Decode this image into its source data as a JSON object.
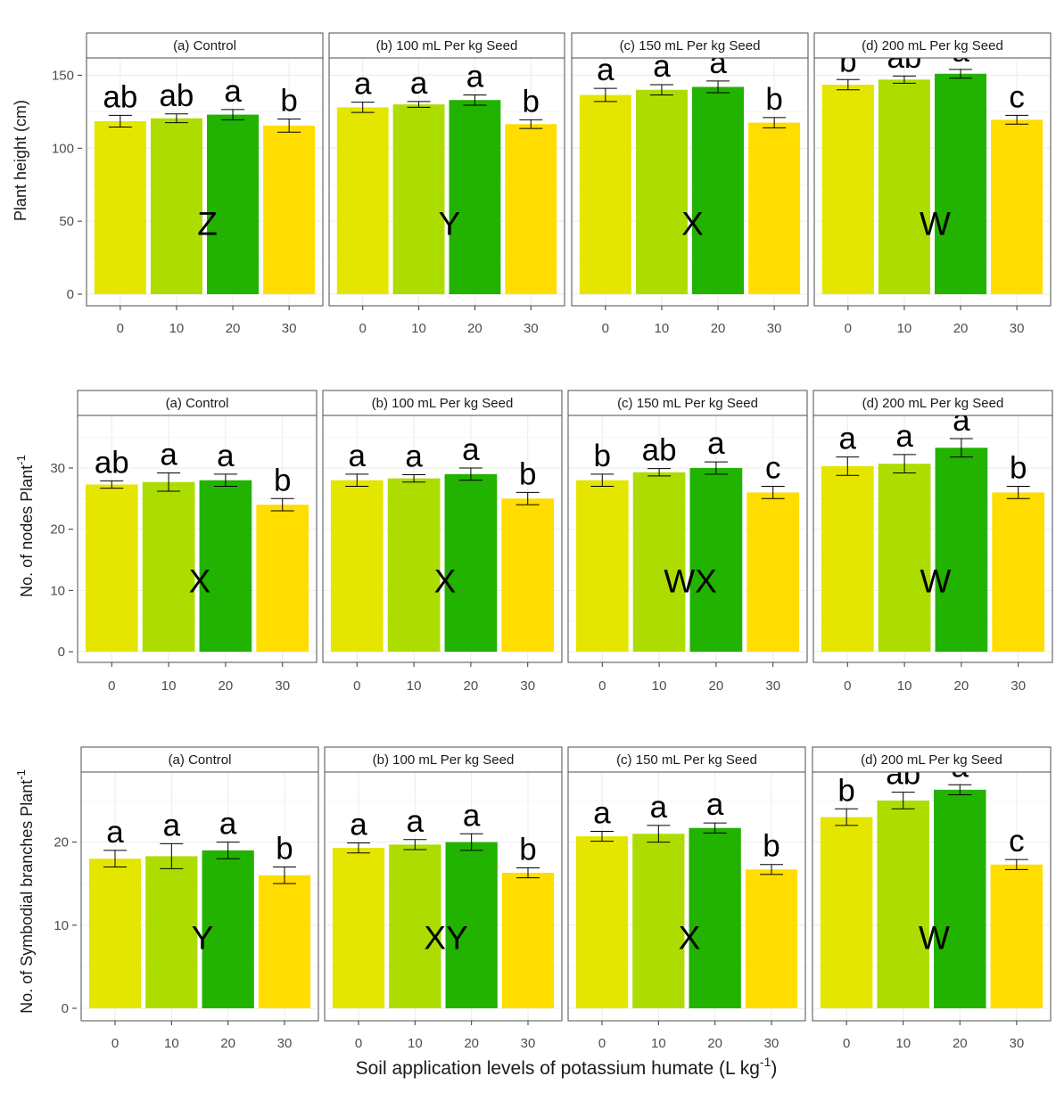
{
  "x_axis_title": "Soil application levels of  potassium humate (L kg",
  "x_axis_title_sup": "-1",
  "x_axis_title_end": ")",
  "chart_data": [
    {
      "type": "bar",
      "ylabel": "Plant height (cm)",
      "ylim": [
        0,
        160
      ],
      "yticks": [
        0,
        50,
        100,
        150
      ],
      "categories": [
        "0",
        "10",
        "20",
        "30"
      ],
      "facets": [
        {
          "label": "(a) Control",
          "values": [
            118.5,
            120.5,
            123,
            115.5
          ],
          "errors": [
            4,
            3,
            3.5,
            4.5
          ],
          "letters": [
            "ab",
            "ab",
            "a",
            "b"
          ],
          "group": "Z"
        },
        {
          "label": "(b) 100 mL Per kg Seed",
          "values": [
            128,
            130,
            133,
            116.5
          ],
          "errors": [
            3.5,
            2,
            3.5,
            3
          ],
          "letters": [
            "a",
            "a",
            "a",
            "b"
          ],
          "group": "Y"
        },
        {
          "label": "(c) 150 mL Per kg Seed",
          "values": [
            136.5,
            140,
            142,
            117.5
          ],
          "errors": [
            4.5,
            3.5,
            4,
            3.5
          ],
          "letters": [
            "a",
            "a",
            "a",
            "b"
          ],
          "group": "X"
        },
        {
          "label": "(d) 200 mL Per kg Seed",
          "values": [
            143.5,
            147,
            151,
            119.5
          ],
          "errors": [
            3.5,
            2.5,
            3,
            3
          ],
          "letters": [
            "b",
            "ab",
            "a",
            "c"
          ],
          "group": "W"
        }
      ]
    },
    {
      "type": "bar",
      "ylabel": "No. of nodes Plant",
      "ylabel_sup": "-1",
      "ylim": [
        0,
        38
      ],
      "yticks": [
        0,
        10,
        20,
        30
      ],
      "categories": [
        "0",
        "10",
        "20",
        "30"
      ],
      "facets": [
        {
          "label": "(a) Control",
          "values": [
            27.3,
            27.7,
            28.0,
            24.0
          ],
          "errors": [
            0.6,
            1.5,
            1.0,
            1.0
          ],
          "letters": [
            "ab",
            "a",
            "a",
            "b"
          ],
          "group": "X"
        },
        {
          "label": "(b) 100 mL Per kg Seed",
          "values": [
            28.0,
            28.3,
            29.0,
            25.0
          ],
          "errors": [
            1.0,
            0.6,
            1.0,
            1.0
          ],
          "letters": [
            "a",
            "a",
            "a",
            "b"
          ],
          "group": "X"
        },
        {
          "label": "(c) 150 mL Per kg Seed",
          "values": [
            28.0,
            29.3,
            30.0,
            26.0
          ],
          "errors": [
            1.0,
            0.6,
            1.0,
            1.0
          ],
          "letters": [
            "b",
            "ab",
            "a",
            "c"
          ],
          "group": "WX"
        },
        {
          "label": "(d) 200 mL Per kg Seed",
          "values": [
            30.3,
            30.7,
            33.3,
            26.0
          ],
          "errors": [
            1.5,
            1.5,
            1.5,
            1.0
          ],
          "letters": [
            "a",
            "a",
            "a",
            "b"
          ],
          "group": "W"
        }
      ]
    },
    {
      "type": "bar",
      "ylabel": "No. of Symbodial branches Plant",
      "ylabel_sup": "-1",
      "ylim": [
        0,
        28
      ],
      "yticks": [
        0,
        10,
        20
      ],
      "categories": [
        "0",
        "10",
        "20",
        "30"
      ],
      "facets": [
        {
          "label": "(a) Control",
          "values": [
            18.0,
            18.3,
            19.0,
            16.0
          ],
          "errors": [
            1.0,
            1.5,
            1.0,
            1.0
          ],
          "letters": [
            "a",
            "a",
            "a",
            "b"
          ],
          "group": "Y"
        },
        {
          "label": "(b) 100 mL Per kg Seed",
          "values": [
            19.3,
            19.7,
            20.0,
            16.3
          ],
          "errors": [
            0.6,
            0.6,
            1.0,
            0.6
          ],
          "letters": [
            "a",
            "a",
            "a",
            "b"
          ],
          "group": "XY"
        },
        {
          "label": "(c) 150 mL Per kg Seed",
          "values": [
            20.7,
            21.0,
            21.7,
            16.7
          ],
          "errors": [
            0.6,
            1.0,
            0.6,
            0.6
          ],
          "letters": [
            "a",
            "a",
            "a",
            "b"
          ],
          "group": "X"
        },
        {
          "label": "(d) 200 mL Per kg Seed",
          "values": [
            23.0,
            25.0,
            26.3,
            17.3
          ],
          "errors": [
            1.0,
            1.0,
            0.6,
            0.6
          ],
          "letters": [
            "b",
            "ab",
            "a",
            "c"
          ],
          "group": "W"
        }
      ]
    }
  ],
  "colors": {
    "bars": [
      "#e5e600",
      "#addd00",
      "#22b200",
      "#ffdd00"
    ],
    "grid": "#ebebeb",
    "strip_fill": "#ffffff",
    "frame": "#4d4d4d"
  }
}
